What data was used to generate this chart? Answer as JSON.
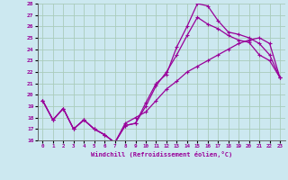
{
  "xlabel": "Windchill (Refroidissement éolien,°C)",
  "bg_color": "#cce8f0",
  "line_color": "#990099",
  "grid_color": "#aaccbb",
  "xlim": [
    -0.5,
    23.5
  ],
  "ylim": [
    16,
    28
  ],
  "xticks": [
    0,
    1,
    2,
    3,
    4,
    5,
    6,
    7,
    8,
    9,
    10,
    11,
    12,
    13,
    14,
    15,
    16,
    17,
    18,
    19,
    20,
    21,
    22,
    23
  ],
  "yticks": [
    16,
    17,
    18,
    19,
    20,
    21,
    22,
    23,
    24,
    25,
    26,
    27,
    28
  ],
  "line1_x": [
    0,
    1,
    2,
    3,
    4,
    5,
    6,
    7,
    8,
    9,
    10,
    11,
    12,
    13,
    14,
    15,
    16,
    17,
    18,
    19,
    20,
    21,
    22,
    23
  ],
  "line1_y": [
    19.5,
    17.8,
    18.8,
    17.0,
    17.8,
    17.0,
    16.5,
    15.8,
    17.3,
    17.5,
    19.3,
    21.0,
    21.8,
    24.2,
    26.0,
    28.0,
    27.8,
    26.5,
    25.5,
    25.3,
    25.0,
    24.5,
    23.5,
    21.5
  ],
  "line2_x": [
    0,
    1,
    2,
    3,
    4,
    5,
    6,
    7,
    8,
    9,
    10,
    11,
    12,
    13,
    14,
    15,
    16,
    17,
    18,
    19,
    20,
    21,
    22,
    23
  ],
  "line2_y": [
    19.5,
    17.8,
    18.8,
    17.0,
    17.8,
    17.0,
    16.5,
    15.8,
    17.3,
    17.5,
    19.0,
    20.8,
    22.0,
    23.5,
    25.2,
    26.8,
    26.2,
    25.8,
    25.2,
    24.8,
    24.6,
    23.5,
    23.0,
    21.5
  ],
  "line3_x": [
    0,
    1,
    2,
    3,
    4,
    5,
    6,
    7,
    8,
    9,
    10,
    11,
    12,
    13,
    14,
    15,
    16,
    17,
    18,
    19,
    20,
    21,
    22,
    23
  ],
  "line3_y": [
    19.5,
    17.8,
    18.8,
    17.0,
    17.8,
    17.0,
    16.5,
    15.8,
    17.5,
    18.0,
    18.5,
    19.5,
    20.5,
    21.2,
    22.0,
    22.5,
    23.0,
    23.5,
    24.0,
    24.5,
    24.8,
    25.0,
    24.5,
    21.5
  ]
}
